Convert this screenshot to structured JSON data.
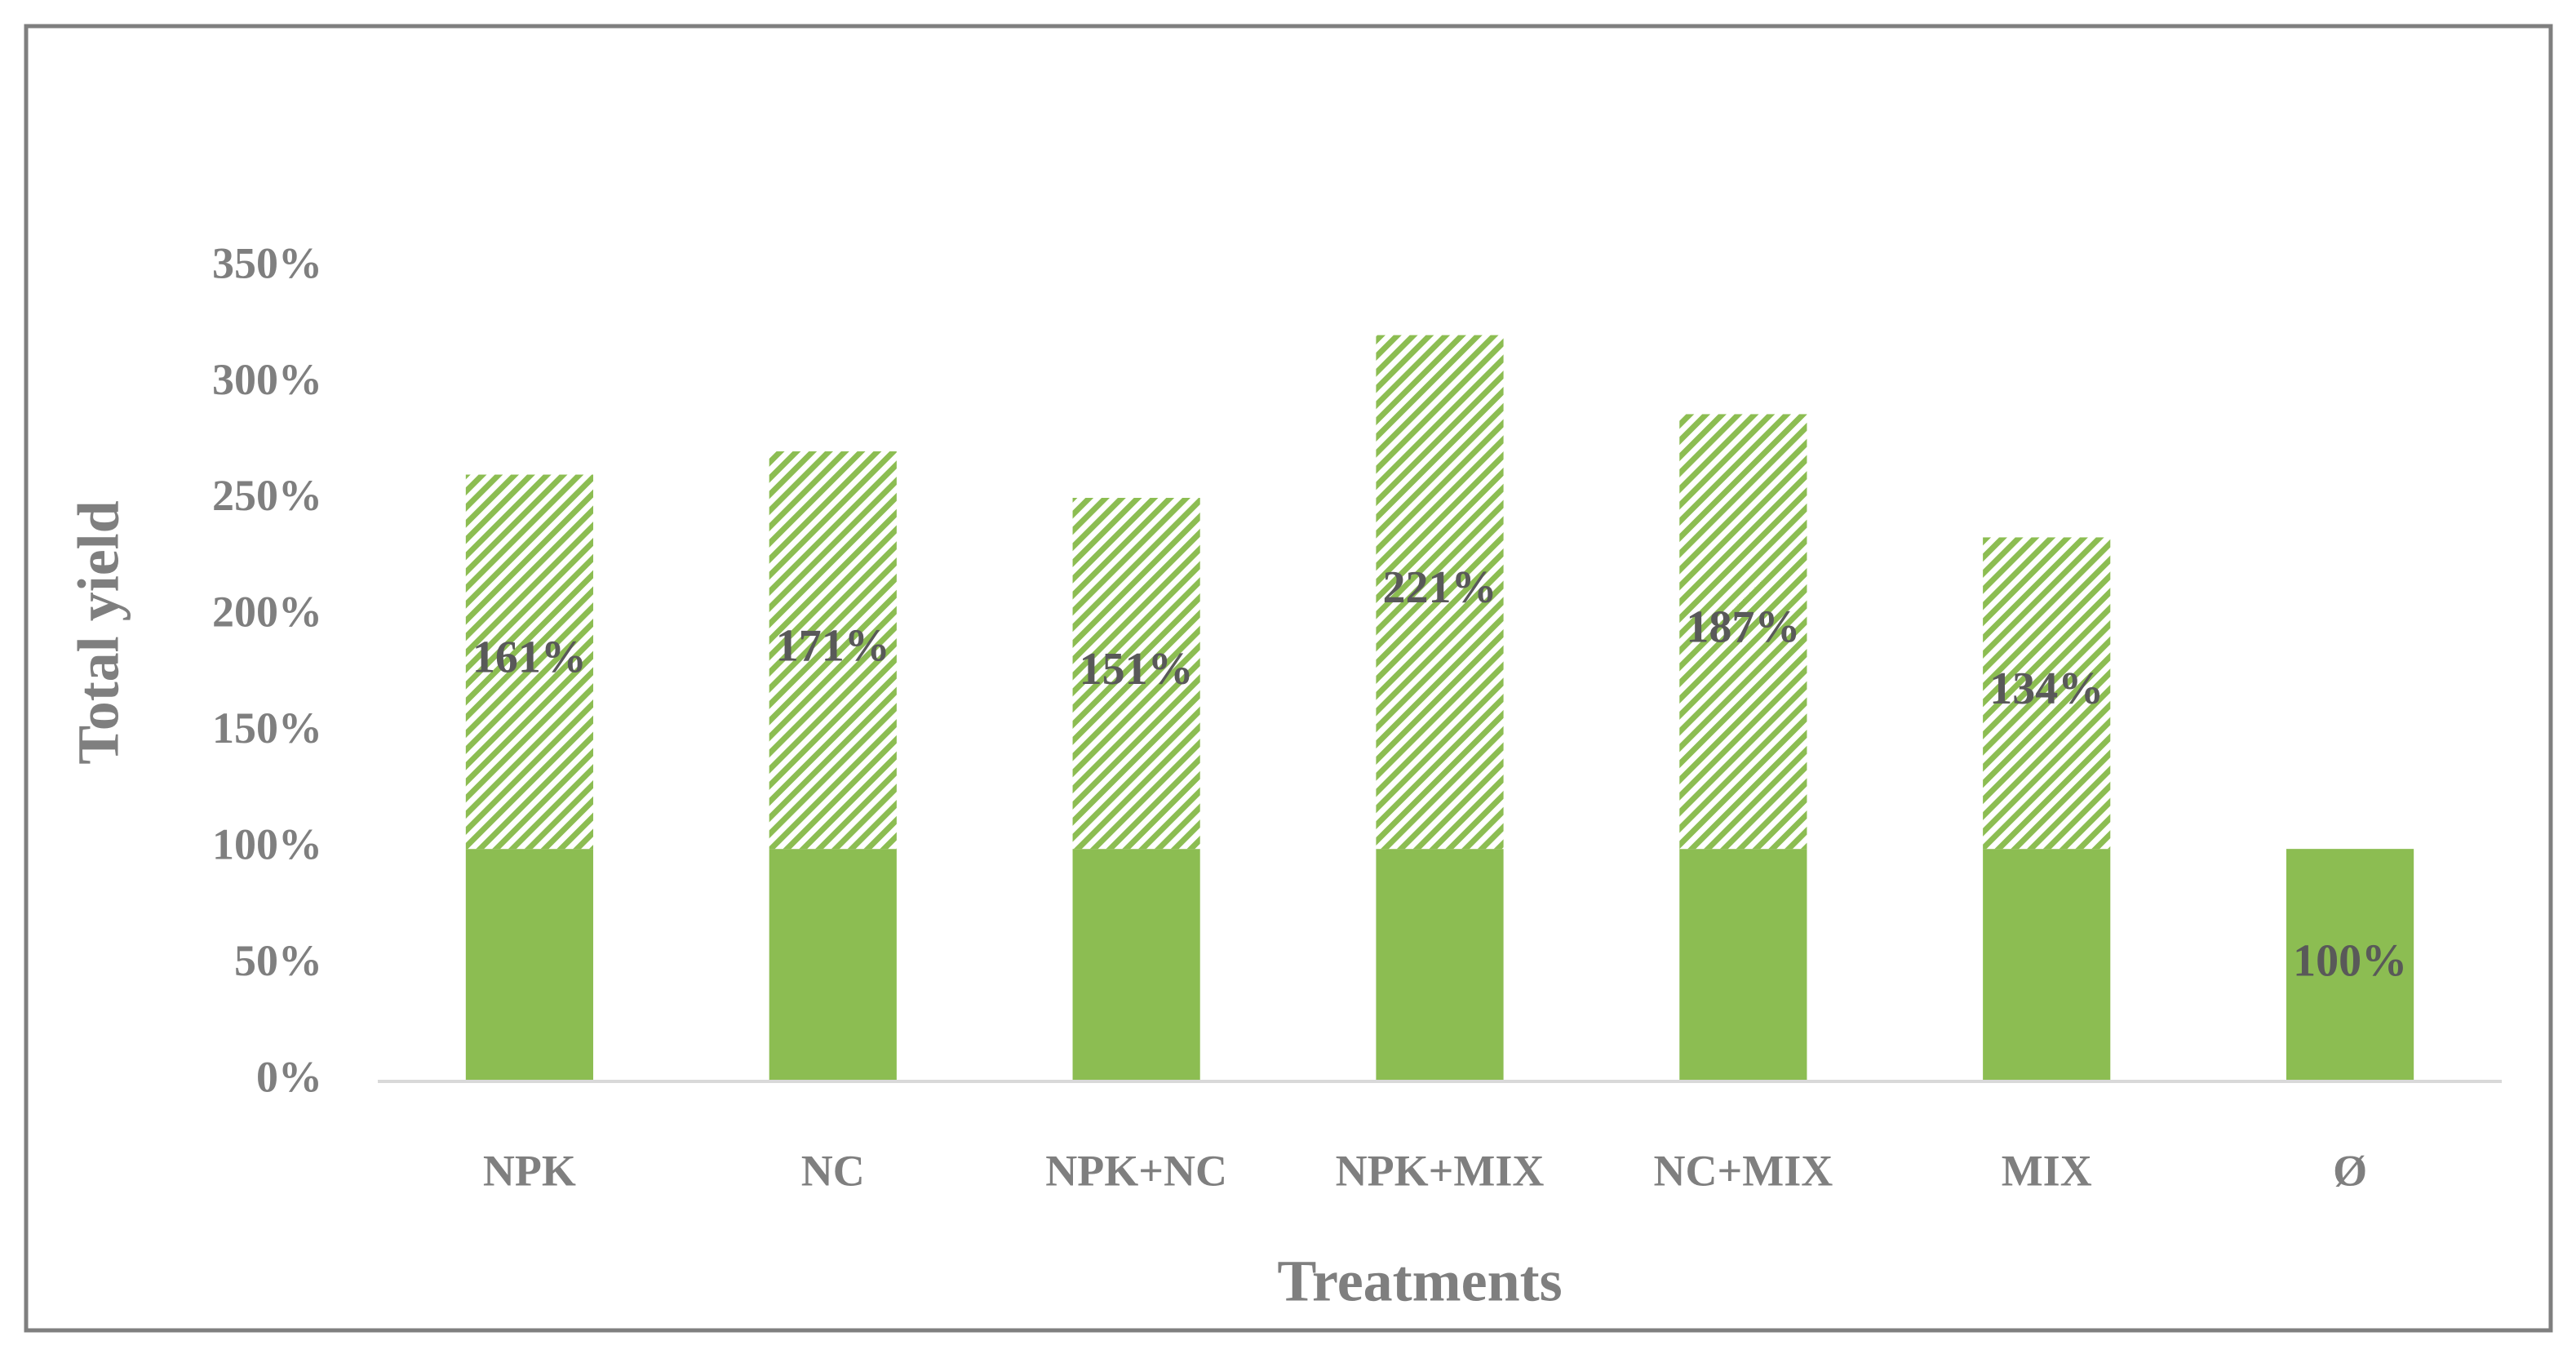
{
  "chart_data": {
    "type": "bar",
    "stacked": true,
    "x_label": "Treatments",
    "y_label": "Total yield",
    "categories": [
      "NPK",
      "NC",
      "NPK+NC",
      "NPK+MIX",
      "NC+MIX",
      "MIX",
      "Ø"
    ],
    "series": [
      {
        "color": "#8cbd52",
        "values": [
          100,
          100,
          100,
          100,
          100,
          100,
          100
        ],
        "value_labels": [
          null,
          null,
          null,
          null,
          null,
          null,
          "100%"
        ]
      },
      {
        "color": "#8cbd52",
        "pattern": "hatch",
        "values": [
          161,
          171,
          151,
          221,
          187,
          134,
          null
        ],
        "value_labels": [
          "161%",
          "171%",
          "151%",
          "221%",
          "187%",
          "134%",
          null
        ]
      }
    ],
    "ylim": [
      0,
      350
    ],
    "yticks": [
      {
        "value": 0,
        "label": "0%"
      },
      {
        "value": 50,
        "label": "50%"
      },
      {
        "value": 100,
        "label": "100%"
      },
      {
        "value": 150,
        "label": "150%"
      },
      {
        "value": 200,
        "label": "200%"
      },
      {
        "value": 250,
        "label": "250%"
      },
      {
        "value": 300,
        "label": "300%"
      },
      {
        "value": 350,
        "label": "350%"
      }
    ],
    "grid": false
  }
}
